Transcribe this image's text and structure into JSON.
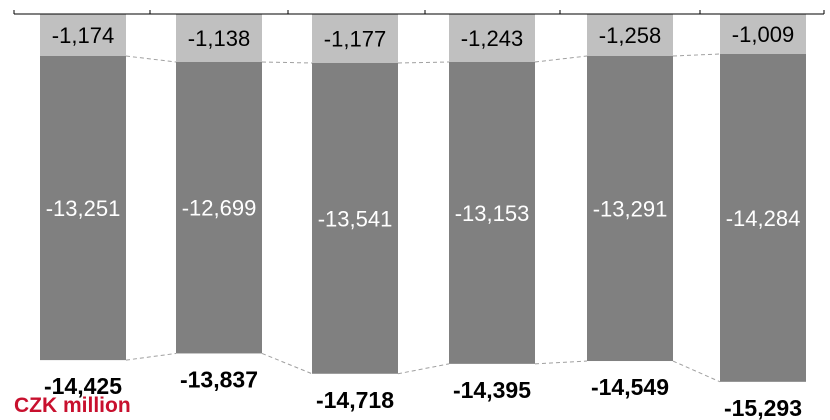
{
  "chart_data": {
    "type": "bar",
    "stacked": true,
    "orientation": "negative-down",
    "unit_label": "CZK million",
    "categories": [
      "",
      "",
      "",
      "",
      "",
      ""
    ],
    "series": [
      {
        "values": [
          -1174,
          -1138,
          -1177,
          -1243,
          -1258,
          -1009
        ],
        "labels": [
          "-1,174",
          "-1,138",
          "-1,177",
          "-1,243",
          "-1,258",
          "-1,009"
        ]
      },
      {
        "values": [
          -13251,
          -12699,
          -13541,
          -13153,
          -13291,
          -14284
        ],
        "labels": [
          "-13,251",
          "-12,699",
          "-13,541",
          "-13,153",
          "-13,291",
          "-14,284"
        ]
      }
    ],
    "totals": [
      -14425,
      -13837,
      -14718,
      -14395,
      -14549,
      -15293
    ],
    "total_labels": [
      "-14,425",
      "-13,837",
      "-14,718",
      "-14,395",
      "-14,549",
      "-15,293"
    ],
    "ylim": [
      -15500,
      0
    ],
    "grid": false,
    "legend": "none",
    "connector_lines": "dashed",
    "colors": {
      "series_top": "#c0c0c0",
      "series_bottom": "#808080",
      "unit_label": "#c8102e",
      "total_label": "#000000",
      "bar_label_light": "#ffffff",
      "bar_label_dark": "#000000",
      "axis": "#000000",
      "connector": "#a0a0a0"
    }
  }
}
